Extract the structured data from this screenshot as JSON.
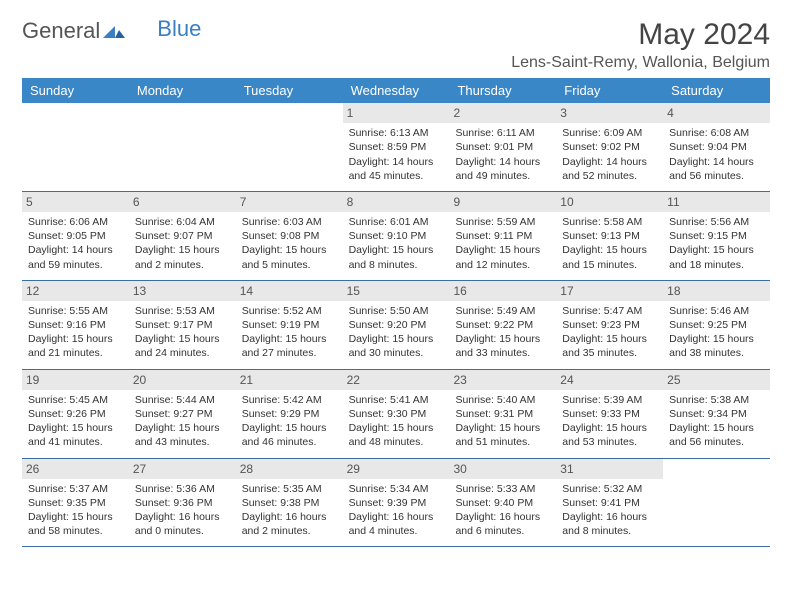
{
  "logo": {
    "text1": "General",
    "text2": "Blue"
  },
  "title": "May 2024",
  "location": "Lens-Saint-Remy, Wallonia, Belgium",
  "colors": {
    "header_bg": "#3a87c7",
    "header_text": "#ffffff",
    "daynum_bg": "#e8e8e8",
    "border": "#3a6fa0",
    "logo_gray": "#555555",
    "logo_blue": "#3a7fc4"
  },
  "day_names": [
    "Sunday",
    "Monday",
    "Tuesday",
    "Wednesday",
    "Thursday",
    "Friday",
    "Saturday"
  ],
  "weeks": [
    [
      null,
      null,
      null,
      {
        "n": "1",
        "sunrise": "6:13 AM",
        "sunset": "8:59 PM",
        "dl": "14 hours and 45 minutes."
      },
      {
        "n": "2",
        "sunrise": "6:11 AM",
        "sunset": "9:01 PM",
        "dl": "14 hours and 49 minutes."
      },
      {
        "n": "3",
        "sunrise": "6:09 AM",
        "sunset": "9:02 PM",
        "dl": "14 hours and 52 minutes."
      },
      {
        "n": "4",
        "sunrise": "6:08 AM",
        "sunset": "9:04 PM",
        "dl": "14 hours and 56 minutes."
      }
    ],
    [
      {
        "n": "5",
        "sunrise": "6:06 AM",
        "sunset": "9:05 PM",
        "dl": "14 hours and 59 minutes."
      },
      {
        "n": "6",
        "sunrise": "6:04 AM",
        "sunset": "9:07 PM",
        "dl": "15 hours and 2 minutes."
      },
      {
        "n": "7",
        "sunrise": "6:03 AM",
        "sunset": "9:08 PM",
        "dl": "15 hours and 5 minutes."
      },
      {
        "n": "8",
        "sunrise": "6:01 AM",
        "sunset": "9:10 PM",
        "dl": "15 hours and 8 minutes."
      },
      {
        "n": "9",
        "sunrise": "5:59 AM",
        "sunset": "9:11 PM",
        "dl": "15 hours and 12 minutes."
      },
      {
        "n": "10",
        "sunrise": "5:58 AM",
        "sunset": "9:13 PM",
        "dl": "15 hours and 15 minutes."
      },
      {
        "n": "11",
        "sunrise": "5:56 AM",
        "sunset": "9:15 PM",
        "dl": "15 hours and 18 minutes."
      }
    ],
    [
      {
        "n": "12",
        "sunrise": "5:55 AM",
        "sunset": "9:16 PM",
        "dl": "15 hours and 21 minutes."
      },
      {
        "n": "13",
        "sunrise": "5:53 AM",
        "sunset": "9:17 PM",
        "dl": "15 hours and 24 minutes."
      },
      {
        "n": "14",
        "sunrise": "5:52 AM",
        "sunset": "9:19 PM",
        "dl": "15 hours and 27 minutes."
      },
      {
        "n": "15",
        "sunrise": "5:50 AM",
        "sunset": "9:20 PM",
        "dl": "15 hours and 30 minutes."
      },
      {
        "n": "16",
        "sunrise": "5:49 AM",
        "sunset": "9:22 PM",
        "dl": "15 hours and 33 minutes."
      },
      {
        "n": "17",
        "sunrise": "5:47 AM",
        "sunset": "9:23 PM",
        "dl": "15 hours and 35 minutes."
      },
      {
        "n": "18",
        "sunrise": "5:46 AM",
        "sunset": "9:25 PM",
        "dl": "15 hours and 38 minutes."
      }
    ],
    [
      {
        "n": "19",
        "sunrise": "5:45 AM",
        "sunset": "9:26 PM",
        "dl": "15 hours and 41 minutes."
      },
      {
        "n": "20",
        "sunrise": "5:44 AM",
        "sunset": "9:27 PM",
        "dl": "15 hours and 43 minutes."
      },
      {
        "n": "21",
        "sunrise": "5:42 AM",
        "sunset": "9:29 PM",
        "dl": "15 hours and 46 minutes."
      },
      {
        "n": "22",
        "sunrise": "5:41 AM",
        "sunset": "9:30 PM",
        "dl": "15 hours and 48 minutes."
      },
      {
        "n": "23",
        "sunrise": "5:40 AM",
        "sunset": "9:31 PM",
        "dl": "15 hours and 51 minutes."
      },
      {
        "n": "24",
        "sunrise": "5:39 AM",
        "sunset": "9:33 PM",
        "dl": "15 hours and 53 minutes."
      },
      {
        "n": "25",
        "sunrise": "5:38 AM",
        "sunset": "9:34 PM",
        "dl": "15 hours and 56 minutes."
      }
    ],
    [
      {
        "n": "26",
        "sunrise": "5:37 AM",
        "sunset": "9:35 PM",
        "dl": "15 hours and 58 minutes."
      },
      {
        "n": "27",
        "sunrise": "5:36 AM",
        "sunset": "9:36 PM",
        "dl": "16 hours and 0 minutes."
      },
      {
        "n": "28",
        "sunrise": "5:35 AM",
        "sunset": "9:38 PM",
        "dl": "16 hours and 2 minutes."
      },
      {
        "n": "29",
        "sunrise": "5:34 AM",
        "sunset": "9:39 PM",
        "dl": "16 hours and 4 minutes."
      },
      {
        "n": "30",
        "sunrise": "5:33 AM",
        "sunset": "9:40 PM",
        "dl": "16 hours and 6 minutes."
      },
      {
        "n": "31",
        "sunrise": "5:32 AM",
        "sunset": "9:41 PM",
        "dl": "16 hours and 8 minutes."
      },
      null
    ]
  ],
  "labels": {
    "sunrise": "Sunrise:",
    "sunset": "Sunset:",
    "daylight": "Daylight:"
  }
}
